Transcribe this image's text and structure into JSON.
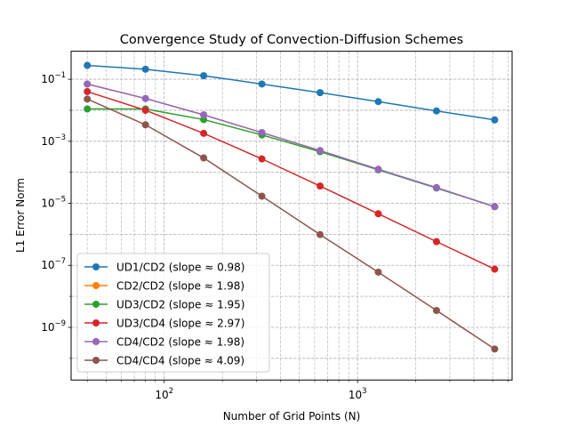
{
  "chart_data": {
    "type": "line",
    "title": "Convergence Study of Convection-Diffusion Schemes",
    "xlabel": "Number of Grid Points (N)",
    "ylabel": "L1 Error Norm",
    "xscale": "log",
    "yscale": "log",
    "xlim": [
      33,
      6300
    ],
    "ylim": [
      2e-11,
      0.8
    ],
    "grid": "both major and minor, dashed",
    "legend_placement": "lower-left",
    "x_tick_labels": [
      {
        "value": 100,
        "base": "10",
        "exp": "2"
      },
      {
        "value": 1000,
        "base": "10",
        "exp": "3"
      }
    ],
    "y_tick_labels": [
      {
        "value": 0.1,
        "base": "10",
        "exp": "−1"
      },
      {
        "value": 0.001,
        "base": "10",
        "exp": "−3"
      },
      {
        "value": 1e-05,
        "base": "10",
        "exp": "−5"
      },
      {
        "value": 1e-07,
        "base": "10",
        "exp": "−7"
      },
      {
        "value": 1e-09,
        "base": "10",
        "exp": "−9"
      }
    ],
    "x": [
      40,
      80,
      160,
      320,
      640,
      1280,
      2560,
      5120
    ],
    "series": [
      {
        "name": "UD1/CD2 (slope ≈ 0.98)",
        "color": "#1f77b4",
        "values": [
          0.28,
          0.21,
          0.13,
          0.07,
          0.037,
          0.019,
          0.0095,
          0.0049
        ]
      },
      {
        "name": "CD2/CD2 (slope ≈ 1.98)",
        "color": "#ff7f0e",
        "values": [
          0.07,
          0.024,
          0.0071,
          0.0019,
          0.0005,
          0.000125,
          3.2e-05,
          7.8e-06
        ]
      },
      {
        "name": "UD3/CD2 (slope ≈ 1.95)",
        "color": "#2ca02c",
        "values": [
          0.011,
          0.011,
          0.005,
          0.0016,
          0.00046,
          0.00012,
          3.1e-05,
          7.8e-06
        ]
      },
      {
        "name": "UD3/CD4 (slope ≈ 2.97)",
        "color": "#d62728",
        "values": [
          0.04,
          0.01,
          0.0018,
          0.00027,
          3.6e-05,
          4.6e-06,
          5.8e-07,
          7.5e-08
        ]
      },
      {
        "name": "CD4/CD2 (slope ≈ 1.98)",
        "color": "#9467bd",
        "values": [
          0.07,
          0.024,
          0.0071,
          0.0019,
          0.0005,
          0.000125,
          3.2e-05,
          7.8e-06
        ]
      },
      {
        "name": "CD4/CD4 (slope ≈ 4.09)",
        "color": "#8c564b",
        "values": [
          0.023,
          0.0034,
          0.00029,
          1.7e-05,
          9.8e-07,
          6e-08,
          3.5e-09,
          2e-10
        ]
      }
    ]
  }
}
